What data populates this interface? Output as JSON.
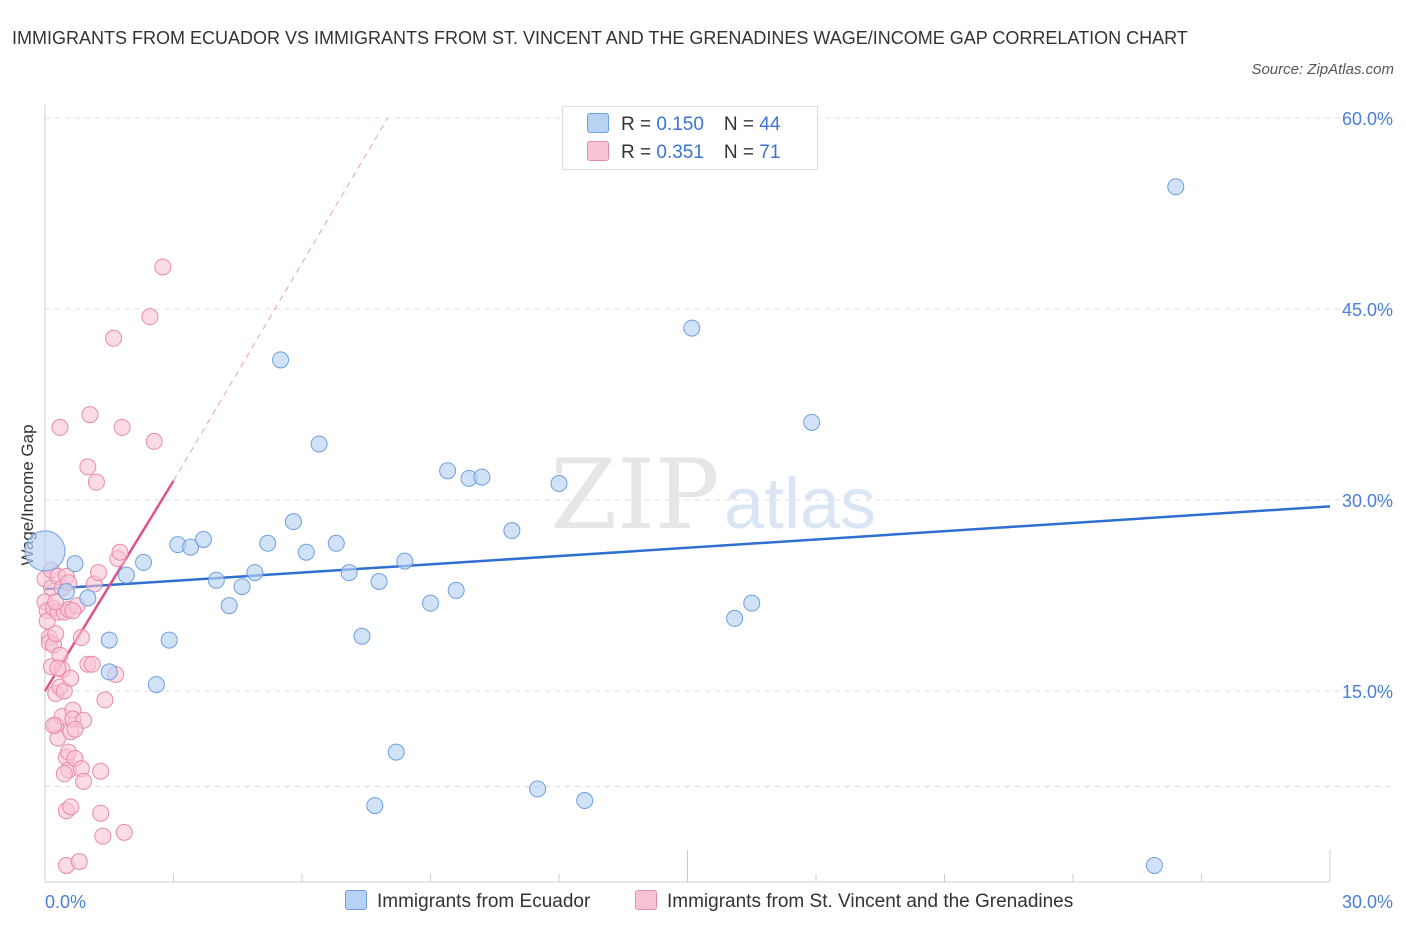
{
  "title": "IMMIGRANTS FROM ECUADOR VS IMMIGRANTS FROM ST. VINCENT AND THE GRENADINES WAGE/INCOME GAP CORRELATION CHART",
  "source": "Source: ZipAtlas.com",
  "watermark": {
    "zip": "ZIP",
    "atlas": "atlas"
  },
  "legend": {
    "rows": [
      {
        "r_label": "R = ",
        "r_value": "0.150",
        "n_label": "N = ",
        "n_value": "44"
      },
      {
        "r_label": "R = ",
        "r_value": "0.351",
        "n_label": "N = ",
        "n_value": "71"
      }
    ]
  },
  "colors": {
    "ecuador_fill": "#b8d2f3",
    "ecuador_stroke": "#6e9fe0",
    "ecuador_line": "#2f6fd0",
    "svg_fill": "#f8c3d3",
    "svg_stroke": "#e98aa8",
    "svg_line": "#e0528a",
    "tick": "#4a7fd6",
    "grid": "#dddddd"
  },
  "chart_data": {
    "type": "scatter",
    "title": "IMMIGRANTS FROM ECUADOR VS IMMIGRANTS FROM ST. VINCENT AND THE GRENADINES WAGE/INCOME GAP CORRELATION CHART",
    "xlabel": "",
    "ylabel": "Wage/Income Gap",
    "xlim": [
      0,
      30
    ],
    "ylim": [
      0,
      60
    ],
    "x_ticks": [
      {
        "value": 0,
        "label": "0.0%"
      },
      {
        "value": 30,
        "label": "30.0%"
      }
    ],
    "y_ticks": [
      {
        "value": 15,
        "label": "15.0%"
      },
      {
        "value": 30,
        "label": "30.0%"
      },
      {
        "value": 45,
        "label": "45.0%"
      },
      {
        "value": 60,
        "label": "60.0%"
      }
    ],
    "grid": true,
    "series": [
      {
        "name": "Immigrants from Ecuador",
        "color": "#6e9fe0",
        "trend": {
          "x": [
            0,
            30
          ],
          "y": [
            23.0,
            29.5
          ]
        },
        "points": [
          [
            0.0,
            26.0
          ],
          [
            0.5,
            22.8
          ],
          [
            0.7,
            25.0
          ],
          [
            1.0,
            22.3
          ],
          [
            1.5,
            19.0
          ],
          [
            1.5,
            16.5
          ],
          [
            1.9,
            24.1
          ],
          [
            2.3,
            25.1
          ],
          [
            2.6,
            15.5
          ],
          [
            2.9,
            19.0
          ],
          [
            3.1,
            26.5
          ],
          [
            3.4,
            26.3
          ],
          [
            3.7,
            26.9
          ],
          [
            4.0,
            23.7
          ],
          [
            4.3,
            21.7
          ],
          [
            4.6,
            23.2
          ],
          [
            4.9,
            24.3
          ],
          [
            5.2,
            26.6
          ],
          [
            5.5,
            41.0
          ],
          [
            5.8,
            28.3
          ],
          [
            6.1,
            25.9
          ],
          [
            6.4,
            34.4
          ],
          [
            6.8,
            26.6
          ],
          [
            7.1,
            24.3
          ],
          [
            7.4,
            19.3
          ],
          [
            7.7,
            6.0
          ],
          [
            7.8,
            23.6
          ],
          [
            8.2,
            10.2
          ],
          [
            8.4,
            25.2
          ],
          [
            9.0,
            21.9
          ],
          [
            9.4,
            32.3
          ],
          [
            9.6,
            22.9
          ],
          [
            9.9,
            31.7
          ],
          [
            10.2,
            31.8
          ],
          [
            10.9,
            27.6
          ],
          [
            11.5,
            7.3
          ],
          [
            12.0,
            31.3
          ],
          [
            12.6,
            6.4
          ],
          [
            15.1,
            43.5
          ],
          [
            16.1,
            20.7
          ],
          [
            16.5,
            21.9
          ],
          [
            17.9,
            36.1
          ],
          [
            25.9,
            1.3
          ],
          [
            26.4,
            54.6
          ]
        ]
      },
      {
        "name": "Immigrants from St. Vincent and the Grenadines",
        "color": "#e98aa8",
        "trend": {
          "x": [
            0,
            3.0
          ],
          "y": [
            15.0,
            31.5
          ],
          "x_dash_end": 8.0,
          "y_dash_end": 60.0
        },
        "points": [
          [
            0.0,
            23.8
          ],
          [
            0.0,
            22.0
          ],
          [
            0.05,
            21.3
          ],
          [
            0.05,
            20.5
          ],
          [
            0.1,
            19.2
          ],
          [
            0.1,
            18.8
          ],
          [
            0.15,
            24.5
          ],
          [
            0.15,
            23.1
          ],
          [
            0.15,
            16.9
          ],
          [
            0.2,
            21.5
          ],
          [
            0.2,
            18.6
          ],
          [
            0.25,
            19.5
          ],
          [
            0.25,
            14.8
          ],
          [
            0.25,
            12.3
          ],
          [
            0.3,
            24.0
          ],
          [
            0.3,
            21.2
          ],
          [
            0.3,
            11.3
          ],
          [
            0.35,
            35.7
          ],
          [
            0.35,
            17.8
          ],
          [
            0.35,
            15.3
          ],
          [
            0.4,
            23.1
          ],
          [
            0.4,
            16.7
          ],
          [
            0.4,
            13.0
          ],
          [
            0.45,
            21.2
          ],
          [
            0.45,
            15.0
          ],
          [
            0.5,
            24.0
          ],
          [
            0.5,
            9.8
          ],
          [
            0.5,
            1.3
          ],
          [
            0.5,
            5.6
          ],
          [
            0.55,
            23.5
          ],
          [
            0.55,
            21.4
          ],
          [
            0.55,
            10.2
          ],
          [
            0.55,
            8.8
          ],
          [
            0.6,
            11.8
          ],
          [
            0.6,
            5.9
          ],
          [
            0.65,
            13.5
          ],
          [
            0.65,
            12.8
          ],
          [
            0.7,
            9.7
          ],
          [
            0.75,
            21.7
          ],
          [
            0.8,
            1.6
          ],
          [
            0.85,
            19.2
          ],
          [
            0.85,
            8.9
          ],
          [
            0.9,
            7.9
          ],
          [
            0.9,
            12.7
          ],
          [
            1.0,
            17.1
          ],
          [
            1.0,
            32.6
          ],
          [
            1.05,
            36.7
          ],
          [
            1.1,
            17.1
          ],
          [
            1.15,
            23.4
          ],
          [
            1.2,
            31.4
          ],
          [
            1.25,
            24.3
          ],
          [
            1.3,
            5.4
          ],
          [
            1.3,
            8.7
          ],
          [
            1.35,
            3.6
          ],
          [
            1.4,
            14.3
          ],
          [
            1.6,
            42.7
          ],
          [
            1.65,
            16.3
          ],
          [
            1.7,
            25.4
          ],
          [
            1.75,
            25.9
          ],
          [
            1.8,
            35.7
          ],
          [
            1.85,
            3.9
          ],
          [
            2.45,
            44.4
          ],
          [
            2.55,
            34.6
          ],
          [
            2.75,
            48.3
          ],
          [
            0.2,
            12.3
          ],
          [
            0.25,
            22.0
          ],
          [
            0.65,
            21.3
          ],
          [
            0.6,
            16.0
          ],
          [
            0.3,
            16.8
          ],
          [
            0.7,
            12.0
          ],
          [
            0.45,
            8.5
          ]
        ]
      }
    ]
  }
}
